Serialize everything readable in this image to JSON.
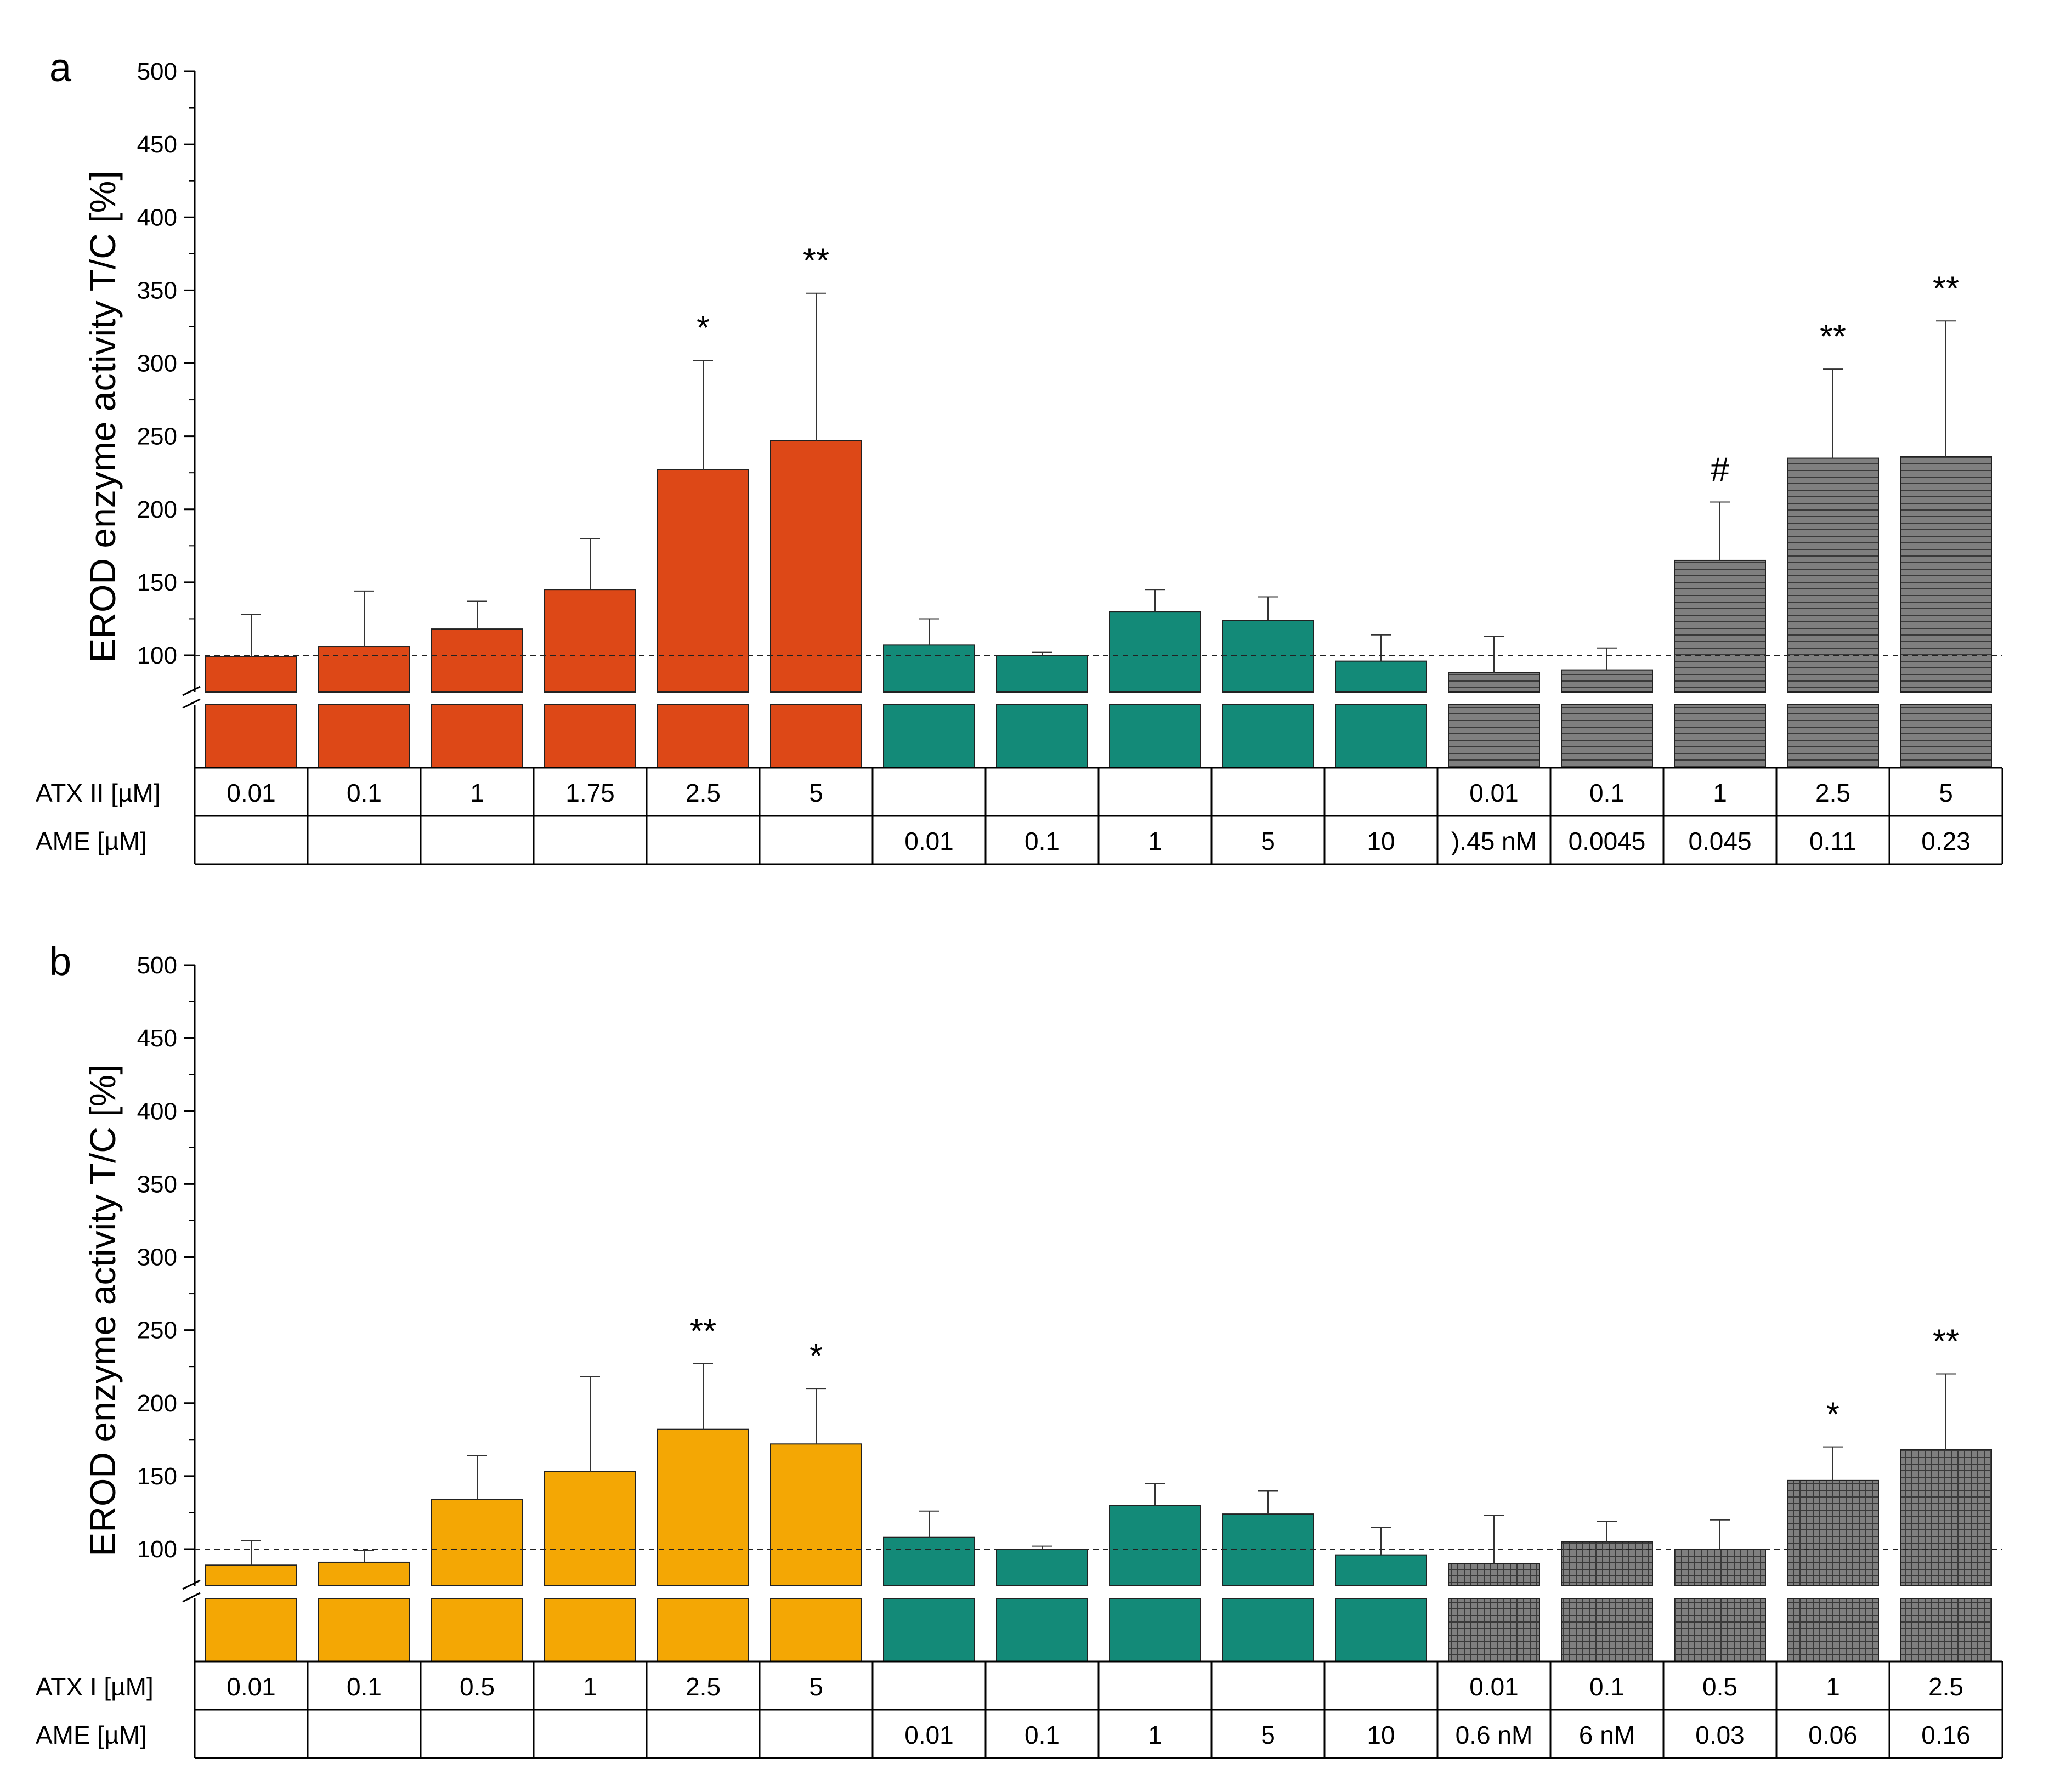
{
  "chart_data": [
    {
      "type": "bar",
      "panel": "a",
      "ylabel": "EROD enzyme activity T/C [%]",
      "ylim": [
        0,
        500
      ],
      "yticks": [
        100,
        150,
        200,
        250,
        300,
        350,
        400,
        450,
        500
      ],
      "reference_line": 100,
      "row_labels": [
        "ATX II [µM]",
        "AME [µM]"
      ],
      "row1": [
        "0.01",
        "0.1",
        "1",
        "1.75",
        "2.5",
        "5",
        "",
        "",
        "",
        "",
        "",
        "0.01",
        "0.1",
        "1",
        "2.5",
        "5"
      ],
      "row2": [
        "",
        "",
        "",
        "",
        "",
        "",
        "0.01",
        "0.1",
        "1",
        "5",
        "10",
        ").45 nM",
        "0.0045",
        "0.045",
        "0.11",
        "0.23"
      ],
      "values": [
        99,
        106,
        118,
        145,
        227,
        247,
        107,
        100,
        130,
        124,
        96,
        88,
        90,
        165,
        235,
        236
      ],
      "errors": [
        29,
        38,
        19,
        35,
        75,
        101,
        18,
        2,
        15,
        16,
        18,
        25,
        15,
        40,
        61,
        93
      ],
      "groups": [
        "atx",
        "atx",
        "atx",
        "atx",
        "atx",
        "atx",
        "ame",
        "ame",
        "ame",
        "ame",
        "ame",
        "mix",
        "mix",
        "mix",
        "mix",
        "mix"
      ],
      "annotations": [
        "",
        "",
        "",
        "",
        "*",
        "**",
        "",
        "",
        "",
        "",
        "",
        "",
        "",
        "#",
        "**",
        "**"
      ],
      "colors": {
        "atx": "#dd4817",
        "ame": "#138a78",
        "mix": "#7f7f7f"
      }
    },
    {
      "type": "bar",
      "panel": "b",
      "ylabel": "EROD enzyme activity T/C [%]",
      "ylim": [
        0,
        500
      ],
      "yticks": [
        100,
        150,
        200,
        250,
        300,
        350,
        400,
        450,
        500
      ],
      "reference_line": 100,
      "row_labels": [
        "ATX I [µM]",
        "AME [µM]"
      ],
      "row1": [
        "0.01",
        "0.1",
        "0.5",
        "1",
        "2.5",
        "5",
        "",
        "",
        "",
        "",
        "",
        "0.01",
        "0.1",
        "0.5",
        "1",
        "2.5"
      ],
      "row2": [
        "",
        "",
        "",
        "",
        "",
        "",
        "0.01",
        "0.1",
        "1",
        "5",
        "10",
        "0.6 nM",
        "6 nM",
        "0.03",
        "0.06",
        "0.16"
      ],
      "values": [
        89,
        91,
        134,
        153,
        182,
        172,
        108,
        100,
        130,
        124,
        96,
        90,
        105,
        100,
        147,
        168
      ],
      "errors": [
        17,
        8,
        30,
        65,
        45,
        38,
        18,
        2,
        15,
        16,
        19,
        33,
        14,
        20,
        23,
        52
      ],
      "groups": [
        "atx",
        "atx",
        "atx",
        "atx",
        "atx",
        "atx",
        "ame",
        "ame",
        "ame",
        "ame",
        "ame",
        "mix",
        "mix",
        "mix",
        "mix",
        "mix"
      ],
      "annotations": [
        "",
        "",
        "",
        "",
        "**",
        "*",
        "",
        "",
        "",
        "",
        "",
        "",
        "",
        "",
        "*",
        "**"
      ],
      "colors": {
        "atx": "#f4a704",
        "ame": "#138a78",
        "mix": "#7f7f7f"
      }
    }
  ]
}
